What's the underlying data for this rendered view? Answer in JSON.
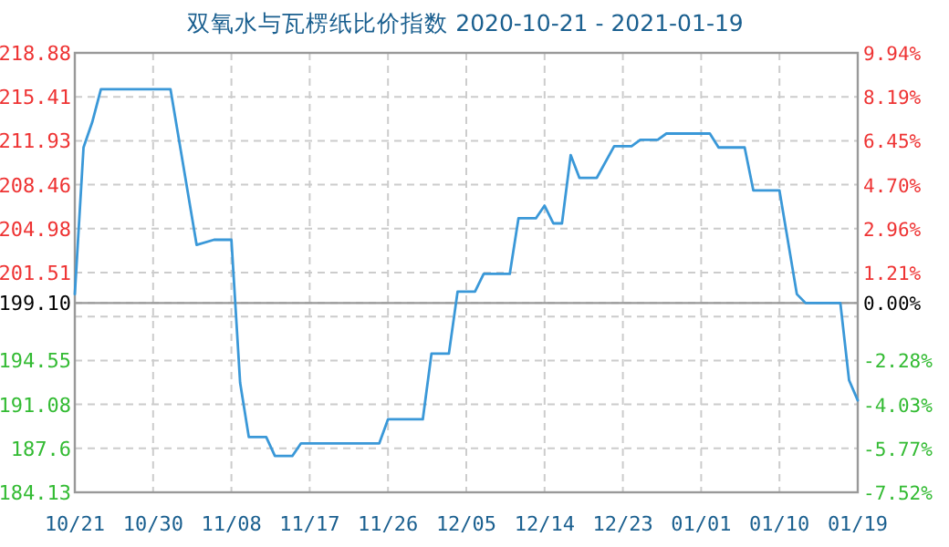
{
  "chart_data": {
    "type": "line",
    "title": "双氧水与瓦楞纸比价指数 2020-10-21 - 2021-01-19",
    "x": [
      "2020-10-21",
      "2020-10-22",
      "2020-10-23",
      "2020-10-24",
      "2020-11-01",
      "2020-11-04",
      "2020-11-06",
      "2020-11-08",
      "2020-11-09",
      "2020-11-10",
      "2020-11-12",
      "2020-11-13",
      "2020-11-15",
      "2020-11-16",
      "2020-11-25",
      "2020-11-26",
      "2020-11-30",
      "2020-12-01",
      "2020-12-03",
      "2020-12-04",
      "2020-12-06",
      "2020-12-07",
      "2020-12-10",
      "2020-12-11",
      "2020-12-13",
      "2020-12-14",
      "2020-12-15",
      "2020-12-16",
      "2020-12-17",
      "2020-12-18",
      "2020-12-20",
      "2020-12-22",
      "2020-12-24",
      "2020-12-25",
      "2020-12-27",
      "2020-12-28",
      "2021-01-02",
      "2021-01-03",
      "2021-01-06",
      "2021-01-07",
      "2021-01-10",
      "2021-01-12",
      "2021-01-13",
      "2021-01-17",
      "2021-01-18",
      "2021-01-19"
    ],
    "series": [
      {
        "color": "#3a98d8",
        "values": [
          199.8,
          211.4,
          213.4,
          216.0,
          216.0,
          203.7,
          204.1,
          204.1,
          192.8,
          188.5,
          188.5,
          187.0,
          187.0,
          188.0,
          188.0,
          189.9,
          189.9,
          195.1,
          195.1,
          200.0,
          200.0,
          201.4,
          201.4,
          205.8,
          205.8,
          206.8,
          205.4,
          205.4,
          210.8,
          209.0,
          209.0,
          211.5,
          211.5,
          212.0,
          212.0,
          212.5,
          212.5,
          211.4,
          211.4,
          208.0,
          208.0,
          199.8,
          199.1,
          199.1,
          193.0,
          191.4
        ]
      }
    ],
    "xlim": [
      "2020-10-21",
      "2021-01-19"
    ],
    "xticks": [
      {
        "value": "2020-10-21",
        "label": "10/21"
      },
      {
        "value": "2020-10-30",
        "label": "10/30"
      },
      {
        "value": "2020-11-08",
        "label": "11/08"
      },
      {
        "value": "2020-11-17",
        "label": "11/17"
      },
      {
        "value": "2020-11-26",
        "label": "11/26"
      },
      {
        "value": "2020-12-05",
        "label": "12/05"
      },
      {
        "value": "2020-12-14",
        "label": "12/14"
      },
      {
        "value": "2020-12-23",
        "label": "12/23"
      },
      {
        "value": "2021-01-01",
        "label": "01/01"
      },
      {
        "value": "2021-01-10",
        "label": "01/10"
      },
      {
        "value": "2021-01-19",
        "label": "01/19"
      }
    ],
    "ylim": [
      184.13,
      218.88
    ],
    "yticks": [
      184.13,
      187.6,
      191.08,
      194.55,
      {
        "value": 198.03,
        "label": null
      },
      {
        "value": 199.1,
        "label": "199.10"
      },
      201.51,
      204.98,
      208.46,
      211.93,
      215.41,
      218.88
    ],
    "y2lim": [
      -7.52,
      9.94
    ],
    "y2ticks": [
      {
        "value": -7.52,
        "label": "-7.52%"
      },
      {
        "value": -5.77,
        "label": "-5.77%"
      },
      {
        "value": -4.03,
        "label": "-4.03%"
      },
      {
        "value": -2.28,
        "label": "-2.28%"
      },
      {
        "value": 0,
        "label": "0.00%"
      },
      {
        "value": 1.21,
        "label": "1.21%"
      },
      {
        "value": 2.96,
        "label": "2.96%"
      },
      {
        "value": 4.7,
        "label": "4.70%"
      },
      {
        "value": 6.45,
        "label": "6.45%"
      },
      {
        "value": 8.19,
        "label": "8.19%"
      },
      {
        "value": 9.94,
        "label": "9.94%"
      }
    ],
    "ref_lines": [
      {
        "axis": "y",
        "value": 199.1,
        "label": null,
        "color": "#999999"
      }
    ],
    "grid": true,
    "marker": "none",
    "line_style": "solid"
  }
}
